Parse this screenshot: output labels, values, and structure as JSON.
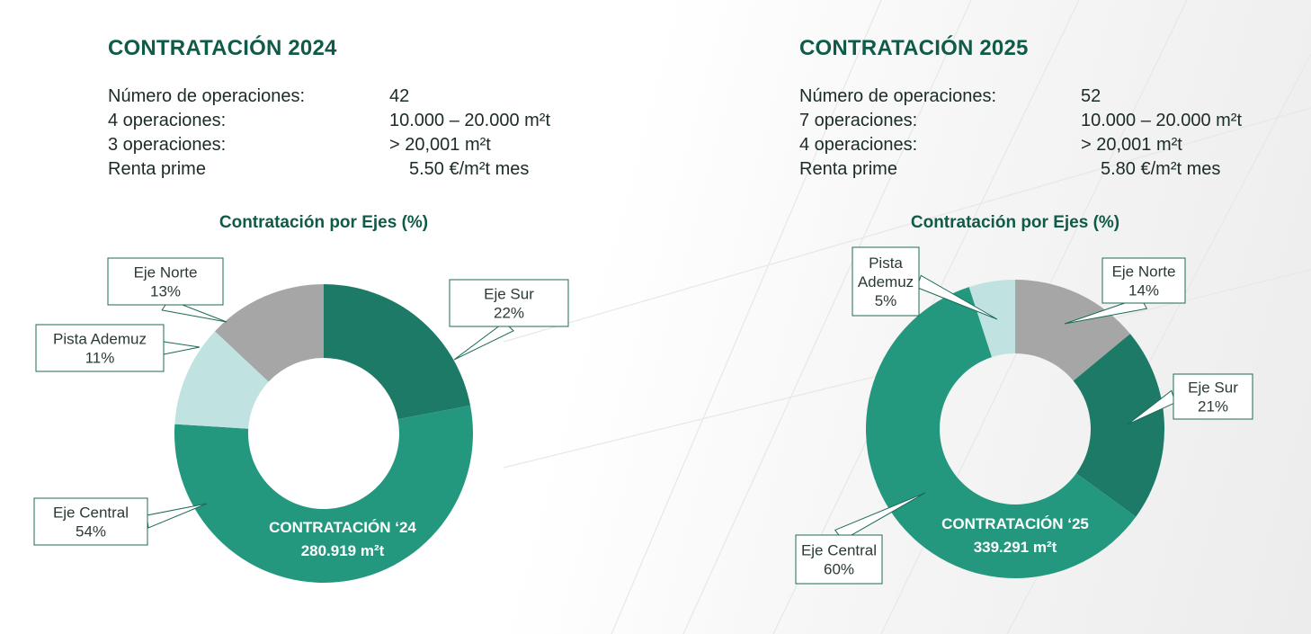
{
  "colors": {
    "title": "#0f5a48",
    "text": "#1b2b27",
    "eje_norte": "#a6a6a6",
    "eje_sur": "#1c7a66",
    "eje_central": "#24987f",
    "pista_ademuz": "#c0e2e1",
    "callout_border": "#1c6a58"
  },
  "panels": [
    {
      "title": "CONTRATACIÓN 2024",
      "stats": [
        {
          "label": "Número de operaciones:",
          "value": "42"
        },
        {
          "label": "4 operaciones:",
          "value": "10.000 – 20.000 m²t"
        },
        {
          "label": "3 operaciones:",
          "value": "> 20,001 m²t"
        },
        {
          "label": "Renta prime",
          "value": "5.50 €/m²t mes"
        }
      ],
      "chart_subtitle": "Contratación por Ejes (%)",
      "center_line1": "CONTRATACIÓN ‘24",
      "center_line2": "280.919 m²t"
    },
    {
      "title": "CONTRATACIÓN 2025",
      "stats": [
        {
          "label": "Número de operaciones:",
          "value": "52"
        },
        {
          "label": "7 operaciones:",
          "value": "10.000 – 20.000 m²t"
        },
        {
          "label": "4 operaciones:",
          "value": "> 20,001 m²t"
        },
        {
          "label": "Renta prime",
          "value": "5.80 €/m²t mes"
        }
      ],
      "chart_subtitle": "Contratación por Ejes (%)",
      "center_line1": "CONTRATACIÓN ‘25",
      "center_line2": "339.291 m²t"
    }
  ],
  "chart_data": [
    {
      "type": "pie",
      "title": "Contratación por Ejes (%)",
      "categories": [
        "Eje Sur",
        "Eje Central",
        "Pista Ademuz",
        "Eje Norte"
      ],
      "values": [
        22,
        54,
        11,
        13
      ],
      "labels": [
        "Eje Sur\n22%",
        "Eje Central\n54%",
        "Pista Ademuz\n11%",
        "Eje Norte\n13%"
      ],
      "center_text": [
        "CONTRATACIÓN ‘24",
        "280.919 m²t"
      ]
    },
    {
      "type": "pie",
      "title": "Contratación por Ejes (%)",
      "categories": [
        "Eje Norte",
        "Eje Sur",
        "Eje Central",
        "Pista Ademuz"
      ],
      "values": [
        14,
        21,
        60,
        5
      ],
      "labels": [
        "Eje Norte\n14%",
        "Eje Sur\n21%",
        "Eje Central\n60%",
        "Pista\nAdemuz\n5%"
      ],
      "center_text": [
        "CONTRATACIÓN ‘25",
        "339.291 m²t"
      ]
    }
  ]
}
